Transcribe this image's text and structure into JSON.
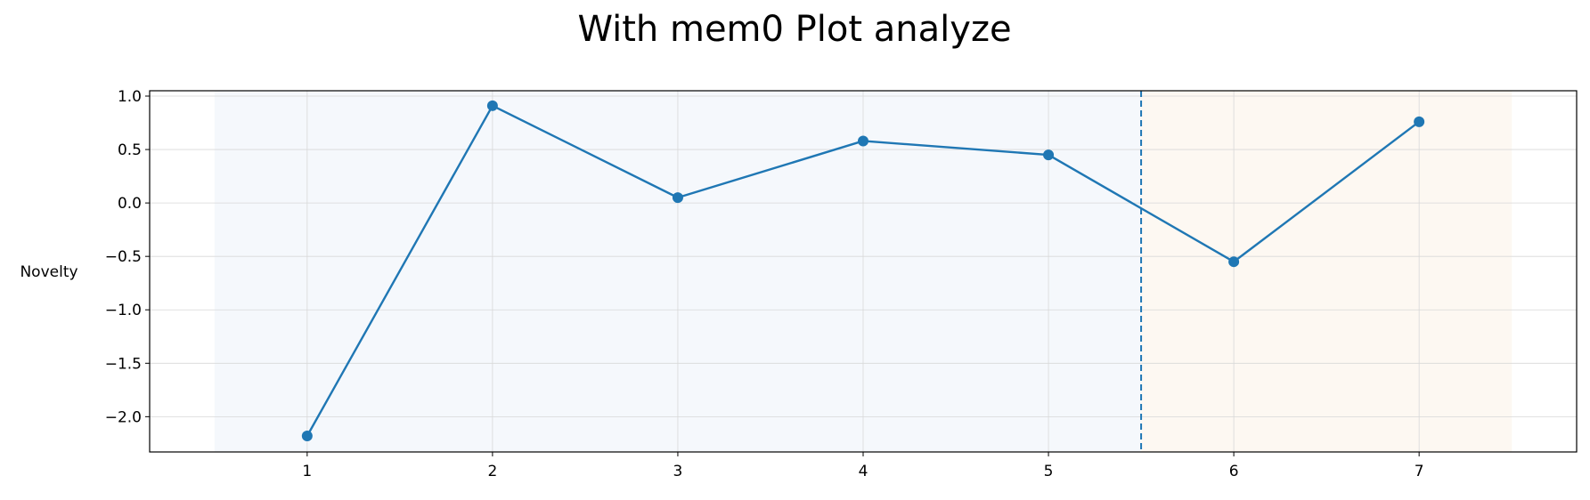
{
  "chart_data": {
    "type": "line",
    "title": "With mem0 Plot analyze",
    "xlabel": "",
    "ylabel": "Novelty",
    "x": [
      1,
      2,
      3,
      4,
      5,
      6,
      7
    ],
    "series": [
      {
        "values": [
          -2.18,
          0.91,
          0.05,
          0.58,
          0.45,
          -0.55,
          0.76
        ],
        "color": "#1f77b4"
      }
    ],
    "xlim": [
      0.15,
      7.85
    ],
    "ylim": [
      -2.33,
      1.05
    ],
    "xticks": [
      1,
      2,
      3,
      4,
      5,
      6,
      7
    ],
    "yticks": [
      1.0,
      0.5,
      0.0,
      -0.5,
      -1.0,
      -1.5,
      -2.0
    ],
    "ytick_labels": [
      "1.0",
      "0.5",
      "0.0",
      "−0.5",
      "−1.0",
      "−1.5",
      "−2.0"
    ],
    "grid": true,
    "regions": [
      {
        "x_start": 0.5,
        "x_end": 5.5,
        "color": "#f5f8fc"
      },
      {
        "x_start": 5.5,
        "x_end": 7.5,
        "color": "#fdf8f2"
      }
    ],
    "vline": {
      "x": 5.5,
      "style": "dashed",
      "color": "#1f77b4"
    }
  }
}
